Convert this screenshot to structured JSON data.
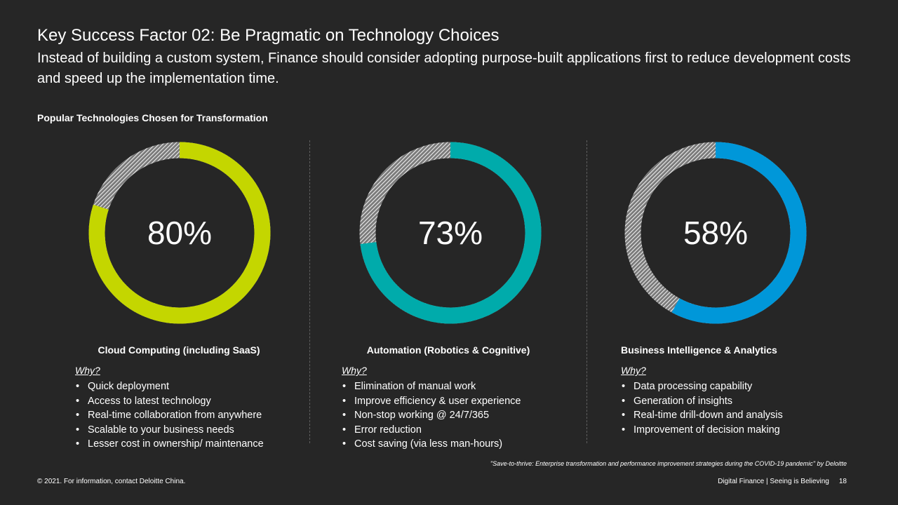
{
  "header": {
    "title": "Key Success Factor 02: Be Pragmatic on Technology Choices",
    "subtitle": "Instead of building a custom system, Finance should consider adopting purpose-built applications first to reduce development costs and speed up the implementation time."
  },
  "section_label": "Popular Technologies Chosen for Transformation",
  "cards": [
    {
      "value_label": "80%",
      "fraction": 0.8,
      "color": "#c4d600",
      "title": "Cloud Computing (including SaaS)",
      "why": "Why?",
      "bullets": [
        "Quick deployment",
        "Access to latest technology",
        "Real-time collaboration from anywhere",
        "Scalable to your business needs",
        "Lesser cost in ownership/ maintenance"
      ]
    },
    {
      "value_label": "73%",
      "fraction": 0.73,
      "color": "#00abab",
      "title": "Automation (Robotics & Cognitive)",
      "why": "Why?",
      "bullets": [
        "Elimination of manual work",
        "Improve efficiency & user experience",
        "Non-stop working @ 24/7/365",
        "Error reduction",
        "Cost saving (via less man-hours)"
      ]
    },
    {
      "value_label": "58%",
      "fraction": 0.58,
      "color": "#0097d9",
      "title": "Business Intelligence & Analytics",
      "why": "Why?",
      "bullets": [
        "Data processing capability",
        "Generation of insights",
        "Real-time drill-down and analysis",
        "Improvement of decision making"
      ]
    }
  ],
  "source_note": "\"Save-to-thrive: Enterprise transformation and performance improvement strategies during the COVID-19 pandemic\" by Deloitte",
  "footer": {
    "copyright": "© 2021. For information, contact Deloitte China.",
    "tagline": "Digital Finance | Seeing is Believing",
    "page_number": "18"
  }
}
